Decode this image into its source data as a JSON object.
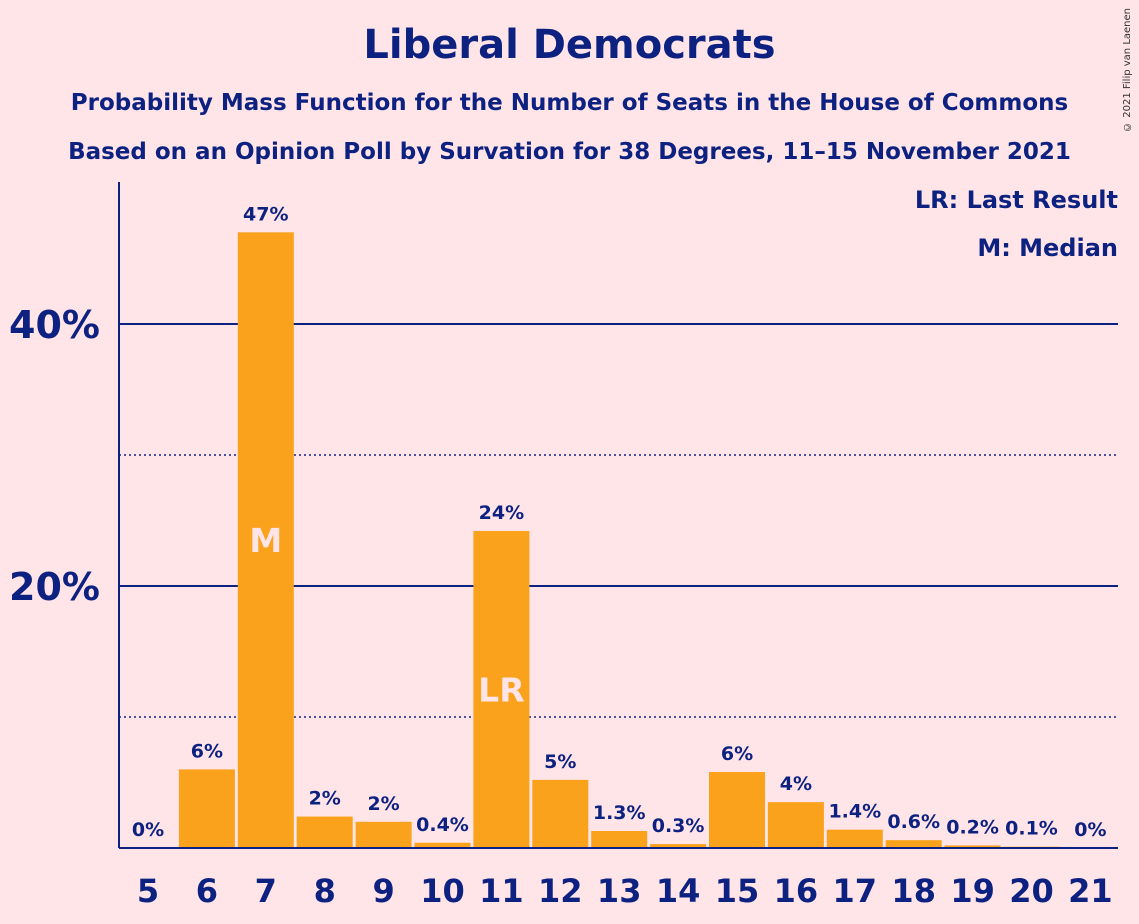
{
  "chart_data": {
    "type": "bar",
    "title": "Liberal Democrats",
    "subtitle": "Probability Mass Function for the Number of Seats in the House of Commons",
    "subtitle2": "Based on an Opinion Poll by Survation for 38 Degrees, 11–15 November 2021",
    "categories": [
      "5",
      "6",
      "7",
      "8",
      "9",
      "10",
      "11",
      "12",
      "13",
      "14",
      "15",
      "16",
      "17",
      "18",
      "19",
      "20",
      "21"
    ],
    "values": [
      0,
      6,
      47,
      2.4,
      2,
      0.4,
      24.2,
      5.2,
      1.3,
      0.3,
      5.8,
      3.5,
      1.4,
      0.6,
      0.2,
      0.1,
      0
    ],
    "value_labels": [
      "0%",
      "6%",
      "47%",
      "2%",
      "2%",
      "0.4%",
      "24%",
      "5%",
      "1.3%",
      "0.3%",
      "6%",
      "4%",
      "1.4%",
      "0.6%",
      "0.2%",
      "0.1%",
      "0%"
    ],
    "yticks": [
      20,
      40
    ],
    "ytick_labels": [
      "20%",
      "40%"
    ],
    "minor_gridlines": [
      10,
      30
    ],
    "ylim": [
      0,
      50
    ],
    "bar_markers": [
      {
        "category": "7",
        "label": "M"
      },
      {
        "category": "11",
        "label": "LR"
      }
    ],
    "legend": {
      "position": "top-right",
      "entries": [
        "LR: Last Result",
        "M: Median"
      ]
    },
    "bar_color": "#fba21d",
    "axis_color": "#0d2280",
    "background": "#ffe4e8"
  },
  "copyright": "© 2021 Filip van Laenen"
}
